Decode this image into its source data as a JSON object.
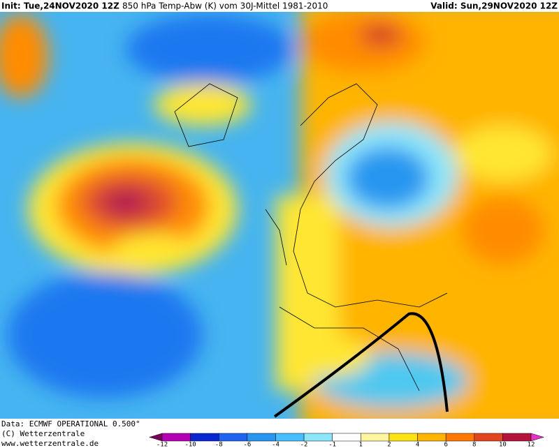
{
  "header": {
    "init": "Init: Tue,24NOV2020 12Z",
    "title": "850 hPa Temp-Abw (K) vom 30J-Mittel 1981-2010",
    "valid": "Valid: Sun,29NOV2020 12Z"
  },
  "footer": {
    "lines": [
      "Data: ECMWF OPERATIONAL 0.500°",
      "(C) Wetterzentrale",
      "www.wetterzentrale.de"
    ]
  },
  "colorbar": {
    "ticks": [
      "-12",
      "-10",
      "-8",
      "-6",
      "-4",
      "-2",
      "-1",
      "1",
      "2",
      "4",
      "6",
      "8",
      "10",
      "12"
    ],
    "colors": [
      "#78005a",
      "#b400b4",
      "#0a28d2",
      "#1e64f0",
      "#2896f0",
      "#46beff",
      "#8ce6fa",
      "#ffffff",
      "#fff5a0",
      "#ffe114",
      "#ffb400",
      "#ff7800",
      "#e1461e",
      "#b4143c",
      "#e632c8"
    ]
  }
}
